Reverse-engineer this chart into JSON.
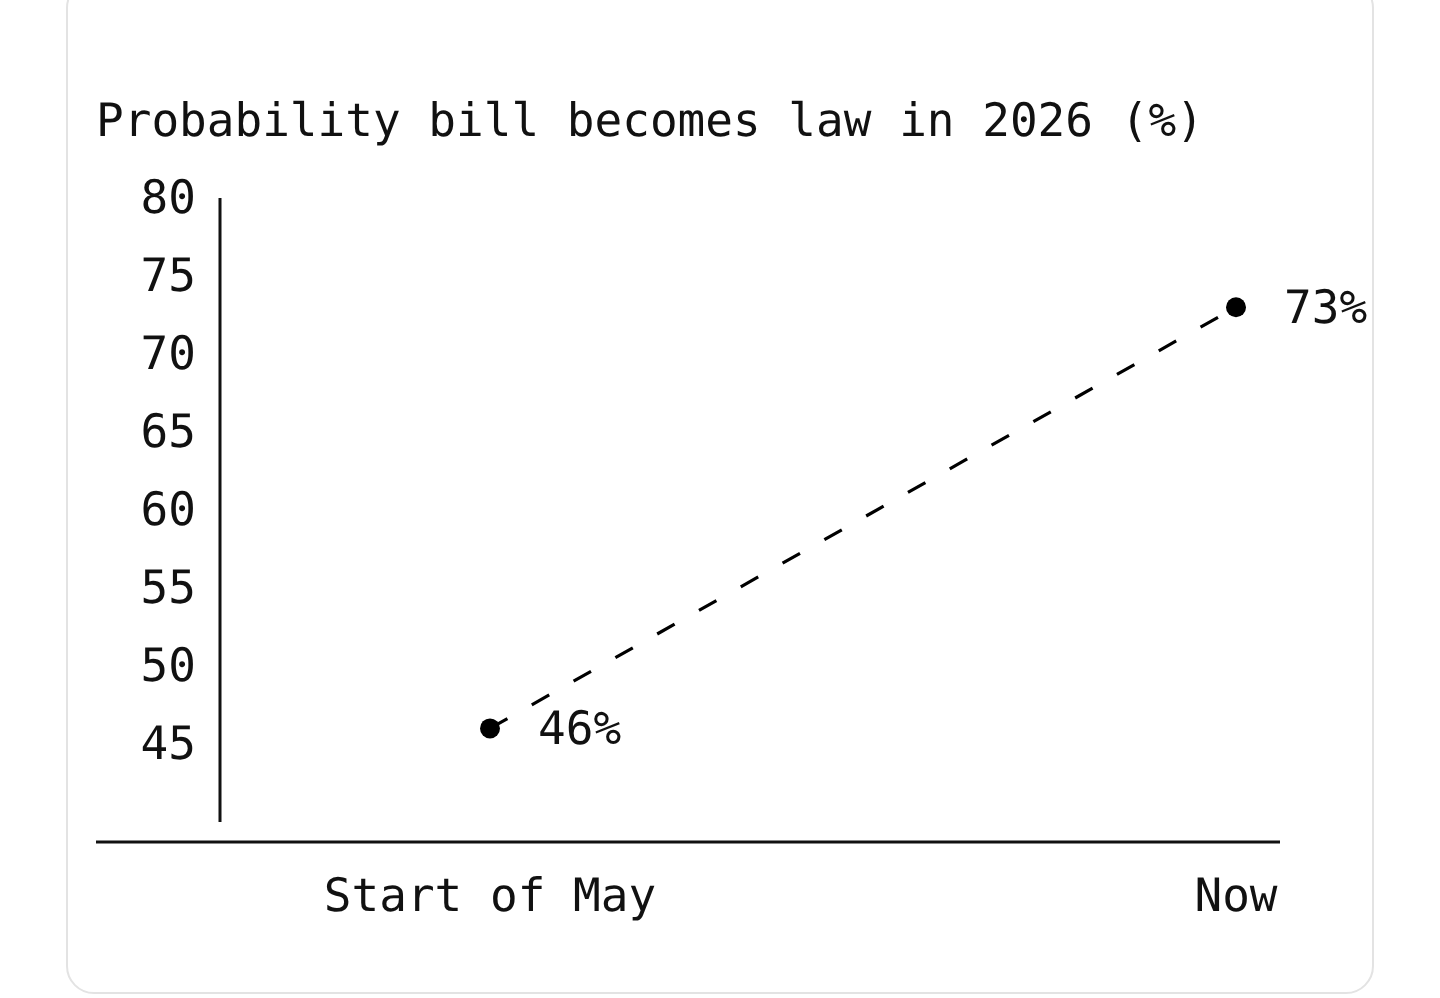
{
  "chart_data": {
    "type": "line",
    "title": "Probability bill becomes law in 2026 (%)",
    "categories": [
      "Start of May",
      "Now"
    ],
    "series": [
      {
        "color": "#000000",
        "values": [
          46,
          73
        ],
        "value_labels": [
          "46%",
          "73%"
        ]
      }
    ],
    "ylim": [
      40,
      80
    ],
    "yticks": [
      45,
      50,
      55,
      60,
      65,
      70,
      75,
      80
    ],
    "marker": "circle",
    "line_style": "dashed"
  }
}
